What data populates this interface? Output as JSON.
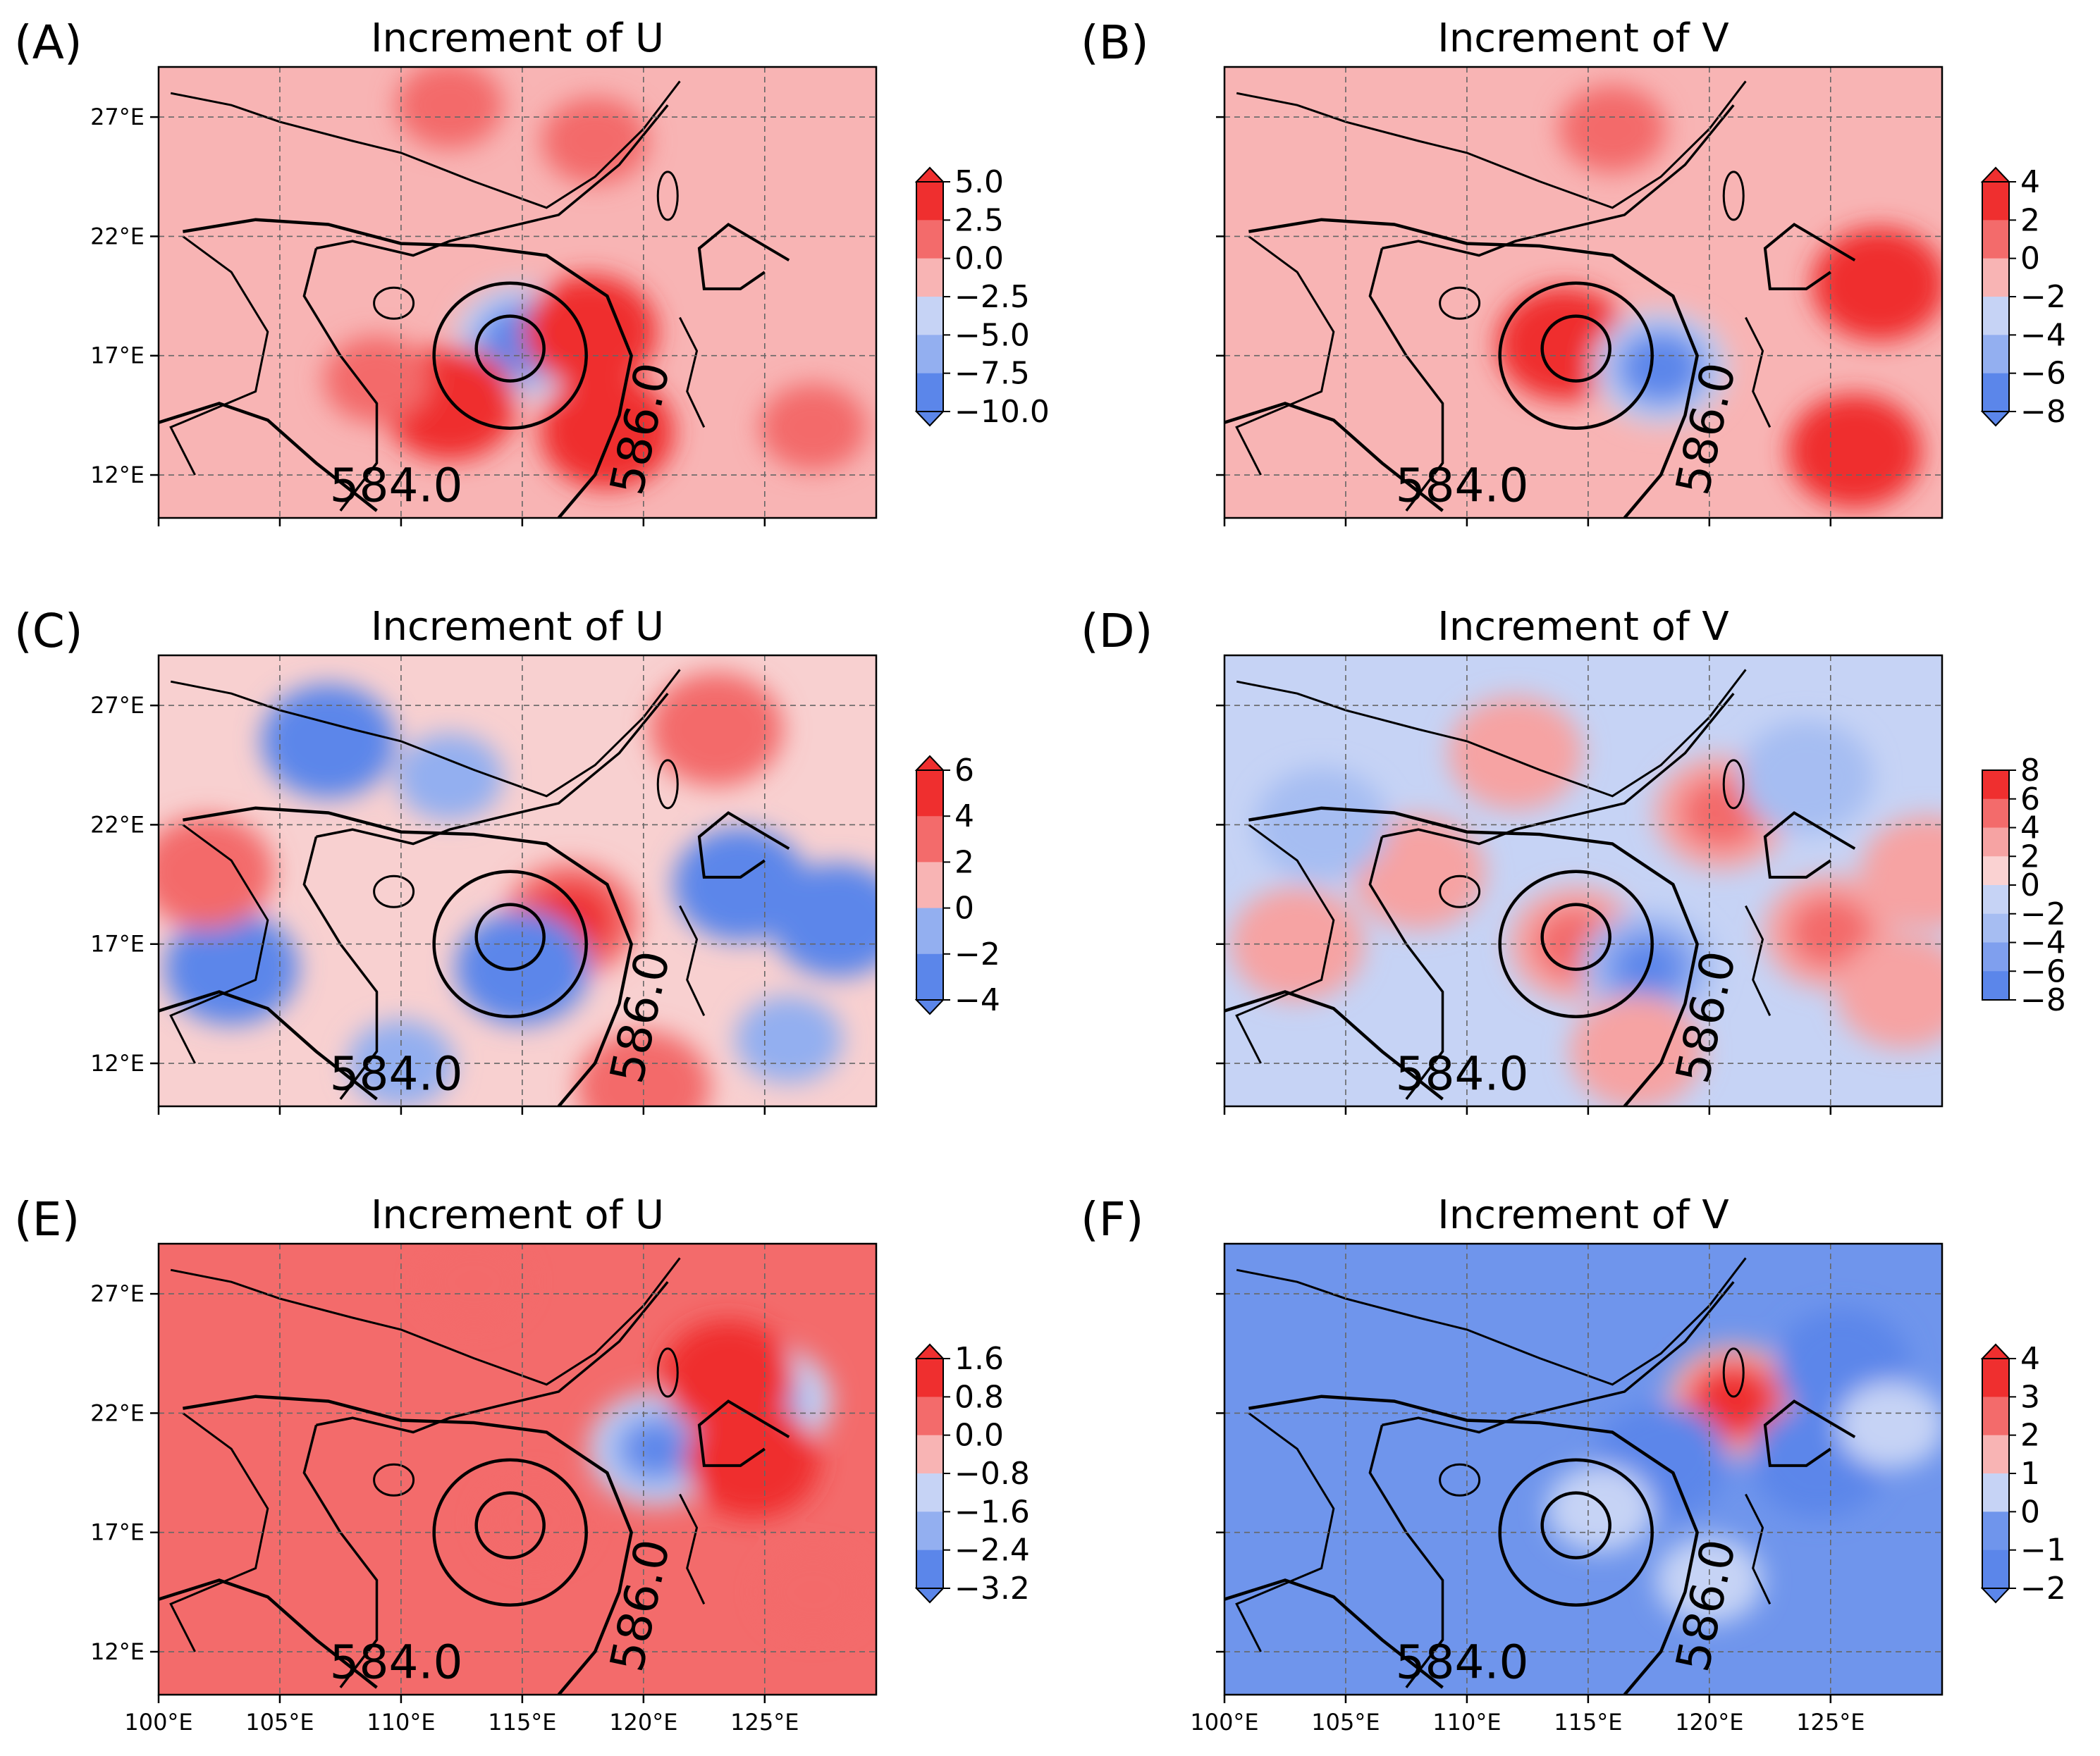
{
  "chart_data": [
    {
      "type": "heatmap",
      "panel_label": "(A)",
      "title": "Increment of U",
      "colorbar": {
        "ticks": [
          "5.0",
          "2.5",
          "0.0",
          "−2.5",
          "−5.0",
          "−7.5",
          "−10.0"
        ],
        "levels": [
          5.0,
          2.5,
          0.0,
          -2.5,
          -5.0,
          -7.5,
          -10.0
        ],
        "colors": [
          "#ef2f2f",
          "#f36b6b",
          "#f8b4b4",
          "#c6d3f5",
          "#93aff0",
          "#5b86ea"
        ],
        "extend": "both"
      },
      "yticks": [
        "27°E",
        "22°E",
        "17°E",
        "12°E"
      ],
      "xticks": [],
      "contour_labels": [
        "584.0",
        "586.0"
      ],
      "background_color": "#f8b4b4",
      "blobs": [
        {
          "lon": 115.0,
          "lat": 17.6,
          "value": -10.0
        },
        {
          "lon": 117.8,
          "lat": 18.0,
          "value": 3.0
        },
        {
          "lon": 112.0,
          "lat": 15.0,
          "value": 3.0
        },
        {
          "lon": 118.5,
          "lat": 13.8,
          "value": 2.5
        },
        {
          "lon": 109.0,
          "lat": 16.0,
          "value": 1.0
        },
        {
          "lon": 127.0,
          "lat": 14.0,
          "value": 1.0
        },
        {
          "lon": 118.0,
          "lat": 26.0,
          "value": 1.0
        },
        {
          "lon": 112.0,
          "lat": 27.5,
          "value": 1.0
        }
      ]
    },
    {
      "type": "heatmap",
      "panel_label": "(B)",
      "title": "Increment of V",
      "colorbar": {
        "ticks": [
          "4",
          "2",
          "0",
          "−2",
          "−4",
          "−6",
          "−8"
        ],
        "levels": [
          4,
          2,
          0,
          -2,
          -4,
          -6,
          -8
        ],
        "colors": [
          "#ef2f2f",
          "#f36b6b",
          "#f8b4b4",
          "#c6d3f5",
          "#93aff0",
          "#5b86ea"
        ],
        "extend": "both"
      },
      "yticks": [],
      "xticks": [],
      "contour_labels": [
        "584.0",
        "586.0"
      ],
      "background_color": "#f8b4b4",
      "blobs": [
        {
          "lon": 114.0,
          "lat": 17.5,
          "value": 4.0
        },
        {
          "lon": 118.0,
          "lat": 16.5,
          "value": -8.0
        },
        {
          "lon": 127.0,
          "lat": 20.0,
          "value": 2.0
        },
        {
          "lon": 126.0,
          "lat": 13.0,
          "value": 2.0
        },
        {
          "lon": 116.0,
          "lat": 26.5,
          "value": 1.5
        }
      ]
    },
    {
      "type": "heatmap",
      "panel_label": "(C)",
      "title": "Increment of U",
      "colorbar": {
        "ticks": [
          "6",
          "4",
          "2",
          "0",
          "−2",
          "−4"
        ],
        "levels": [
          6,
          4,
          2,
          0,
          -2,
          -4
        ],
        "colors": [
          "#ef2f2f",
          "#f36b6b",
          "#f8b4b4",
          "#93aff0",
          "#5b86ea"
        ],
        "extend": "both"
      },
      "yticks": [
        "27°E",
        "22°E",
        "17°E",
        "12°E"
      ],
      "xticks": [],
      "contour_labels": [
        "584.0",
        "586.0"
      ],
      "background_color": "#f8d0d0",
      "blobs": [
        {
          "lon": 117.0,
          "lat": 18.0,
          "value": 4.5
        },
        {
          "lon": 115.0,
          "lat": 16.0,
          "value": -3.0
        },
        {
          "lon": 124.0,
          "lat": 19.5,
          "value": -3.5
        },
        {
          "lon": 103.0,
          "lat": 16.0,
          "value": -3.0
        },
        {
          "lon": 107.0,
          "lat": 25.5,
          "value": -2.0
        },
        {
          "lon": 112.0,
          "lat": 24.0,
          "value": -1.5
        },
        {
          "lon": 128.0,
          "lat": 18.0,
          "value": -2.5
        },
        {
          "lon": 123.0,
          "lat": 26.0,
          "value": 2.0
        },
        {
          "lon": 102.0,
          "lat": 20.0,
          "value": 2.0
        },
        {
          "lon": 120.0,
          "lat": 11.0,
          "value": 2.5
        },
        {
          "lon": 110.0,
          "lat": 12.0,
          "value": -1.5
        },
        {
          "lon": 126.0,
          "lat": 13.0,
          "value": -1.5
        }
      ]
    },
    {
      "type": "heatmap",
      "panel_label": "(D)",
      "title": "Increment of V",
      "colorbar": {
        "ticks": [
          "8",
          "6",
          "4",
          "2",
          "0",
          "−2",
          "−4",
          "−6",
          "−8"
        ],
        "levels": [
          8,
          6,
          4,
          2,
          0,
          -2,
          -4,
          -6,
          -8
        ],
        "colors": [
          "#ef2f2f",
          "#f36b6b",
          "#f6a3a3",
          "#fad2d2",
          "#c6d3f5",
          "#a6bdf2",
          "#7f9fee",
          "#5b86ea"
        ],
        "extend": "neither"
      },
      "yticks": [],
      "xticks": [],
      "contour_labels": [
        "584.0",
        "586.0"
      ],
      "background_color": "#c6d3f5",
      "blobs": [
        {
          "lon": 114.5,
          "lat": 17.0,
          "value": 5.0
        },
        {
          "lon": 117.5,
          "lat": 16.0,
          "value": -6.0
        },
        {
          "lon": 120.5,
          "lat": 22.5,
          "value": 5.0
        },
        {
          "lon": 125.0,
          "lat": 17.5,
          "value": 4.0
        },
        {
          "lon": 128.0,
          "lat": 15.0,
          "value": 3.5
        },
        {
          "lon": 129.0,
          "lat": 20.0,
          "value": 3.0
        },
        {
          "lon": 108.0,
          "lat": 20.0,
          "value": 2.5
        },
        {
          "lon": 104.0,
          "lat": 22.0,
          "value": -2.5
        },
        {
          "lon": 112.0,
          "lat": 25.0,
          "value": 2.0
        },
        {
          "lon": 124.0,
          "lat": 24.0,
          "value": -2.0
        },
        {
          "lon": 117.0,
          "lat": 12.5,
          "value": 2.0
        },
        {
          "lon": 103.0,
          "lat": 17.0,
          "value": 2.0
        }
      ]
    },
    {
      "type": "heatmap",
      "panel_label": "(E)",
      "title": "Increment of U",
      "colorbar": {
        "ticks": [
          "1.6",
          "0.8",
          "0.0",
          "−0.8",
          "−1.6",
          "−2.4",
          "−3.2"
        ],
        "levels": [
          1.6,
          0.8,
          0.0,
          -0.8,
          -1.6,
          -2.4,
          -3.2
        ],
        "colors": [
          "#ef2f2f",
          "#f36b6b",
          "#f8b4b4",
          "#c6d3f5",
          "#93aff0",
          "#5b86ea"
        ],
        "extend": "both"
      },
      "yticks": [
        "27°E",
        "22°E",
        "17°E",
        "12°E"
      ],
      "xticks": [
        "100°E",
        "105°E",
        "110°E",
        "115°E",
        "120°E",
        "125°E"
      ],
      "contour_labels": [
        "584.0",
        "586.0"
      ],
      "background_color": "#f36b6b",
      "blobs": [
        {
          "lon": 120.5,
          "lat": 20.5,
          "value": -3.0
        },
        {
          "lon": 125.0,
          "lat": 22.5,
          "value": -2.0
        },
        {
          "lon": 123.5,
          "lat": 23.5,
          "value": 1.6
        },
        {
          "lon": 124.5,
          "lat": 20.0,
          "value": 1.6
        },
        {
          "lon": 115.5,
          "lat": 17.5,
          "value": 0.4
        },
        {
          "lon": 127.0,
          "lat": 14.5,
          "value": 0.4
        },
        {
          "lon": 113.0,
          "lat": 27.5,
          "value": 0.4
        }
      ]
    },
    {
      "type": "heatmap",
      "panel_label": "(F)",
      "title": "Increment of V",
      "colorbar": {
        "ticks": [
          "4",
          "3",
          "2",
          "1",
          "0",
          "−1",
          "−2"
        ],
        "levels": [
          4,
          3,
          2,
          1,
          0,
          -1,
          -2
        ],
        "colors": [
          "#ef2f2f",
          "#f36b6b",
          "#f8b4b4",
          "#c6d3f5",
          "#6f95ec",
          "#5b86ea"
        ],
        "extend": "both"
      },
      "yticks": [],
      "xticks": [
        "100°E",
        "105°E",
        "110°E",
        "115°E",
        "120°E",
        "125°E"
      ],
      "contour_labels": [
        "584.0",
        "586.0"
      ],
      "background_color": "#6f95ec",
      "blobs": [
        {
          "lon": 121.0,
          "lat": 22.5,
          "value": 4.0
        },
        {
          "lon": 124.5,
          "lat": 20.0,
          "value": -1.8
        },
        {
          "lon": 118.0,
          "lat": 20.0,
          "value": -1.5
        },
        {
          "lon": 125.5,
          "lat": 24.0,
          "value": -1.6
        },
        {
          "lon": 120.0,
          "lat": 15.0,
          "value": 0.6
        },
        {
          "lon": 115.5,
          "lat": 18.0,
          "value": 0.6
        },
        {
          "lon": 127.5,
          "lat": 21.5,
          "value": 0.6
        }
      ]
    }
  ]
}
